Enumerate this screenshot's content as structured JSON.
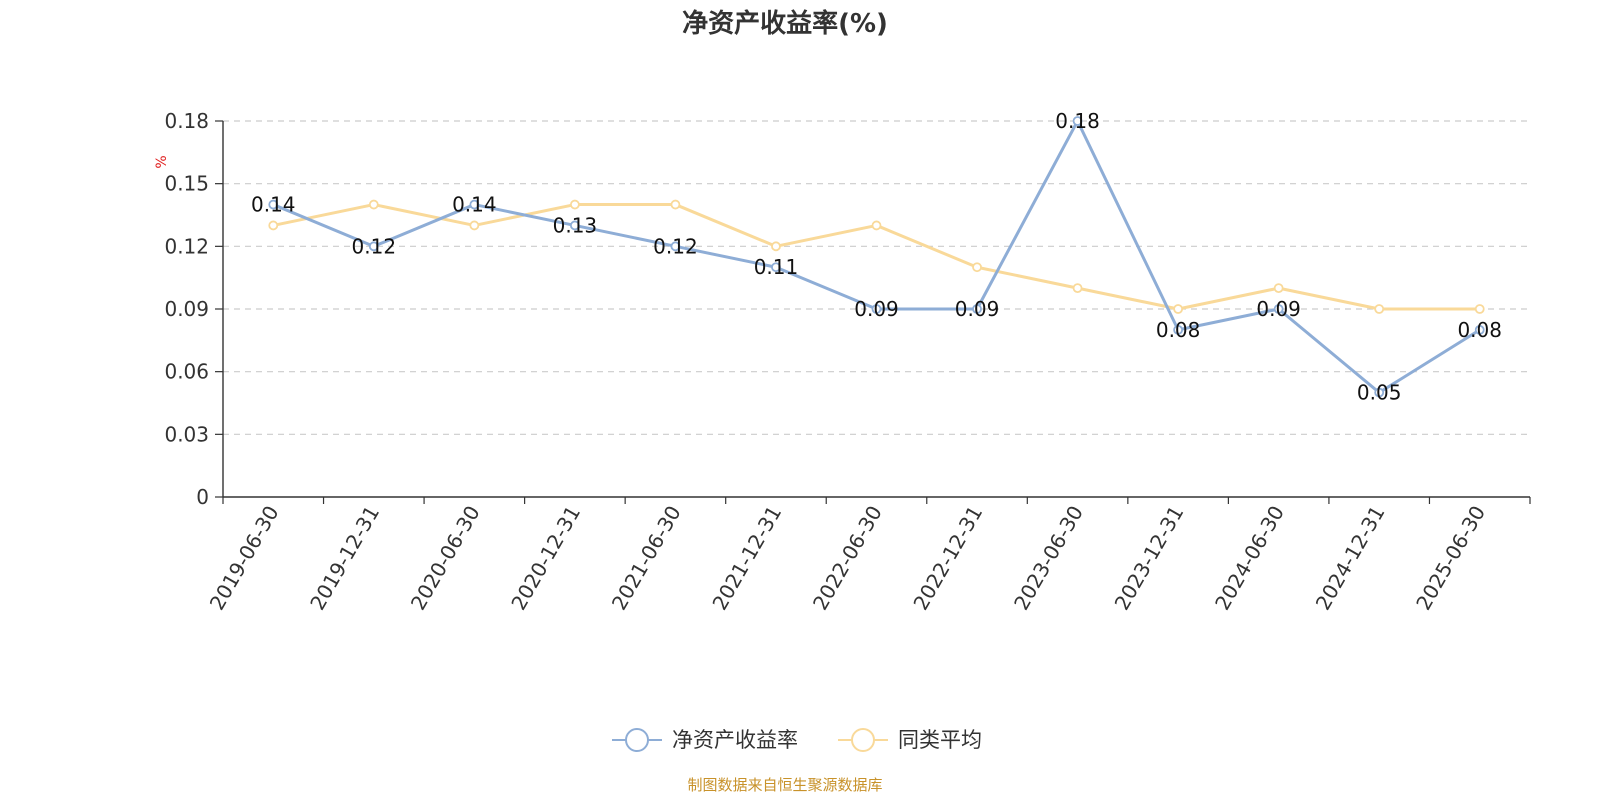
{
  "chart_data": {
    "type": "line",
    "title": "净资产收益率(%)",
    "ylabel": "%",
    "xlabel": "",
    "categories": [
      "2019-06-30",
      "2019-12-31",
      "2020-06-30",
      "2020-12-31",
      "2021-06-30",
      "2021-12-31",
      "2022-06-30",
      "2022-12-31",
      "2023-06-30",
      "2023-12-31",
      "2024-06-30",
      "2024-12-31",
      "2025-06-30"
    ],
    "ylim": [
      0,
      0.18
    ],
    "yticks": [
      "0",
      "0.03",
      "0.06",
      "0.09",
      "0.12",
      "0.15",
      "0.18"
    ],
    "grid": true,
    "legend_position": "bottom-center",
    "series": [
      {
        "name": "净资产收益率",
        "color": "#8eadd6",
        "values": [
          0.14,
          0.12,
          0.14,
          0.13,
          0.12,
          0.11,
          0.09,
          0.09,
          0.18,
          0.08,
          0.09,
          0.05,
          0.08
        ],
        "labels": [
          "0.14",
          "0.12",
          "0.14",
          "0.13",
          "0.12",
          "0.11",
          "0.09",
          "0.09",
          "0.18",
          "0.08",
          "0.09",
          "0.05",
          "0.08"
        ]
      },
      {
        "name": "同类平均",
        "color": "#f9d999",
        "values": [
          0.13,
          0.14,
          0.13,
          0.14,
          0.14,
          0.12,
          0.13,
          0.11,
          0.1,
          0.09,
          0.1,
          0.09,
          0.09
        ]
      }
    ]
  },
  "source_text": "制图数据来自恒生聚源数据库",
  "colors": {
    "unit_label": "#e02020",
    "source_text": "#c8922a",
    "axis": "#333333",
    "grid": "#cccccc"
  }
}
